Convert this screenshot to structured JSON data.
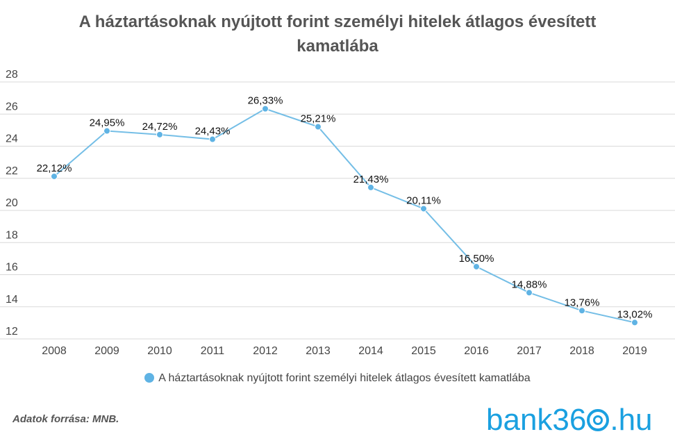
{
  "title": "A háztartásoknak nyújtott forint személyi hitelek átlagos évesített kamatlába",
  "source": "Adatok forrása: MNB.",
  "logo": {
    "prefix": "bank36",
    "suffix": ".hu"
  },
  "colors": {
    "series": "#74bee6",
    "marker": "#5fb3e4",
    "grid": "#d9d9d9",
    "logo": "#1aa0e0"
  },
  "chart_data": {
    "type": "line",
    "categories": [
      "2008",
      "2009",
      "2010",
      "2011",
      "2012",
      "2013",
      "2014",
      "2015",
      "2016",
      "2017",
      "2018",
      "2019"
    ],
    "series": [
      {
        "name": "A háztartásoknak nyújtott forint személyi hitelek átlagos évesített kamatlába",
        "values": [
          22.12,
          24.95,
          24.72,
          24.43,
          26.33,
          25.21,
          21.43,
          20.11,
          16.5,
          14.88,
          13.76,
          13.02
        ],
        "labels": [
          "22,12%",
          "24,95%",
          "24,72%",
          "24,43%",
          "26,33%",
          "25,21%",
          "21,43%",
          "20,11%",
          "16,50%",
          "14,88%",
          "13,76%",
          "13,02%"
        ]
      }
    ],
    "ylim": [
      12,
      28
    ],
    "yticks": [
      12,
      14,
      16,
      18,
      20,
      22,
      24,
      26,
      28
    ],
    "grid": true,
    "legend": "bottom"
  }
}
